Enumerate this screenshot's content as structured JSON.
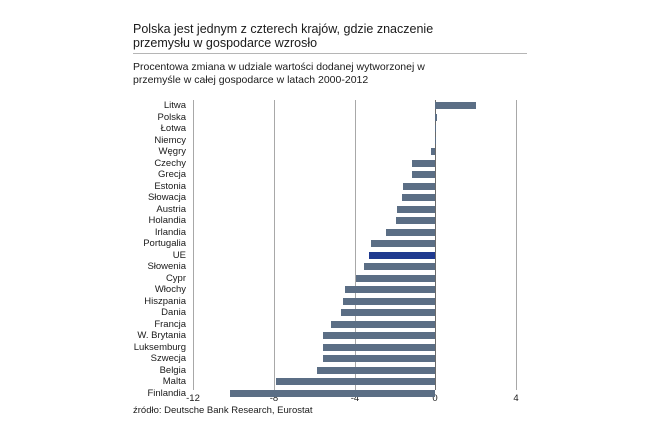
{
  "header": {
    "title_line1": "Polska jest jednym z czterech krajów, gdzie znaczenie",
    "title_line2": "przemysłu w gospodarce wzrosło",
    "subtitle_line1": "Procentowa zmiana w udziale wartości dodanej wytworzonej w",
    "subtitle_line2": "przemyśle w całej gospodarce w latach 2000-2012"
  },
  "footer": {
    "source": "źródło: Deutsche Bank Research, Eurostat"
  },
  "colors": {
    "bar": "#5b6e85",
    "highlight": "#1f3a8f",
    "grid": "#a8a8a8",
    "zero_line": "#6a6a6a"
  },
  "chart_data": {
    "type": "bar",
    "orientation": "horizontal",
    "title": "Polska jest jednym z czterech krajów, gdzie znaczenie przemysłu w gospodarce wzrosło",
    "subtitle": "Procentowa zmiana w udziale wartości dodanej wytworzonej w przemyśle w całej gospodarce w latach 2000-2012",
    "xlabel": "",
    "ylabel": "",
    "xlim": [
      -12,
      4
    ],
    "xticks": [
      -12,
      -8,
      -4,
      0,
      4
    ],
    "grid": true,
    "legend": null,
    "highlight_category": "UE",
    "categories": [
      "Litwa",
      "Polska",
      "Łotwa",
      "Niemcy",
      "Węgry",
      "Czechy",
      "Grecja",
      "Estonia",
      "Słowacja",
      "Austria",
      "Holandia",
      "Irlandia",
      "Portugalia",
      "UE",
      "Słowenia",
      "Cypr",
      "Włochy",
      "Hiszpania",
      "Dania",
      "Francja",
      "W. Brytania",
      "Luksemburg",
      "Szwecja",
      "Belgia",
      "Malta",
      "Finlandia"
    ],
    "values": [
      2.0,
      0.1,
      0.05,
      0.05,
      -0.2,
      -1.15,
      -1.15,
      -1.6,
      -1.65,
      -1.9,
      -1.95,
      -2.45,
      -3.2,
      -3.3,
      -3.55,
      -3.95,
      -4.45,
      -4.55,
      -4.65,
      -5.15,
      -5.55,
      -5.55,
      -5.55,
      -5.85,
      -7.9,
      -10.15
    ],
    "source": "źródło: Deutsche Bank Research, Eurostat"
  }
}
